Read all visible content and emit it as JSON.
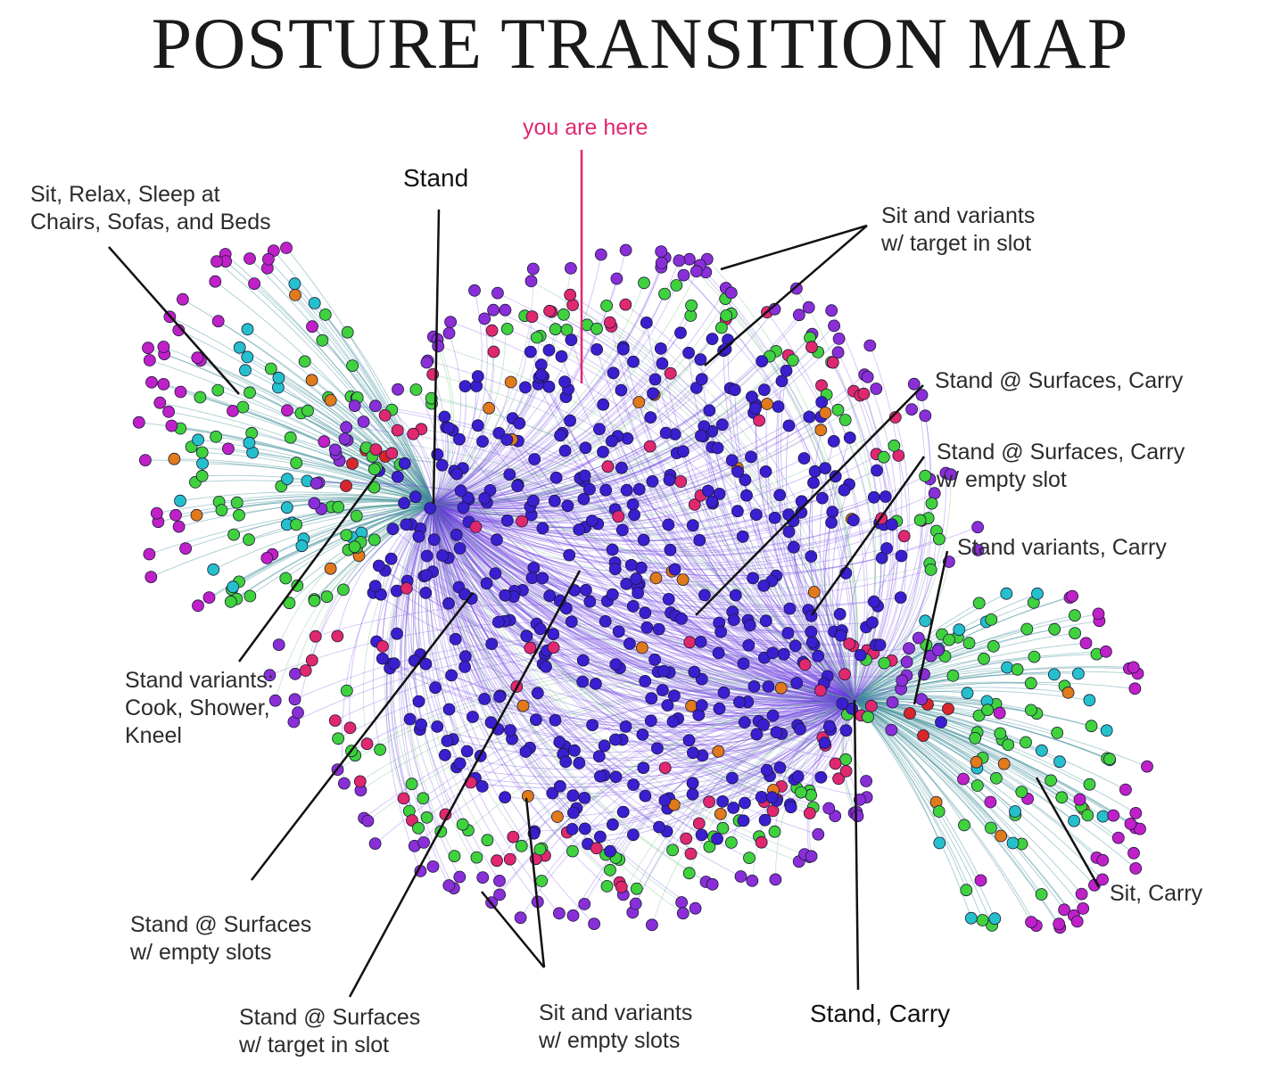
{
  "title": "POSTURE TRANSITION MAP",
  "colors": {
    "posture_blue": "#3a1fd0",
    "sit_magenta": "#c020c8",
    "slot_green": "#3fd23c",
    "carry_cyan": "#25c0cc",
    "orange": "#e07a1a",
    "red": "#d8262a",
    "pink": "#e0286e",
    "violet": "#8a2fd8",
    "edge_teal": "#3d8f9a",
    "edge_purple": "#6a3be0",
    "you_are_here_line": "#e0286e",
    "callout_line": "#111111"
  },
  "labels": {
    "you_are_here": "you are here",
    "stand": "Stand",
    "sit_relax_l1": "Sit, Relax, Sleep at",
    "sit_relax_l2": "Chairs, Sofas, and Beds",
    "sit_target_l1": "Sit and variants",
    "sit_target_l2": "w/ target in slot",
    "stand_surfaces_carry": "Stand @ Surfaces, Carry",
    "stand_surfaces_carry_empty_l1": "Stand @ Surfaces, Carry",
    "stand_surfaces_carry_empty_l2": "w/ empty slot",
    "stand_variants_carry": "Stand variants, Carry",
    "stand_variants_l1": "Stand variants:",
    "stand_variants_l2": "Cook, Shower,",
    "stand_variants_l3": "Kneel",
    "stand_surfaces_empty_l1": "Stand @ Surfaces",
    "stand_surfaces_empty_l2": "w/ empty slots",
    "stand_surfaces_target_l1": "Stand @ Surfaces",
    "stand_surfaces_target_l2": "w/ target in slot",
    "sit_empty_l1": "Sit and variants",
    "sit_empty_l2": "w/ empty slots",
    "stand_carry": "Stand, Carry",
    "sit_carry": "Sit, Carry"
  }
}
